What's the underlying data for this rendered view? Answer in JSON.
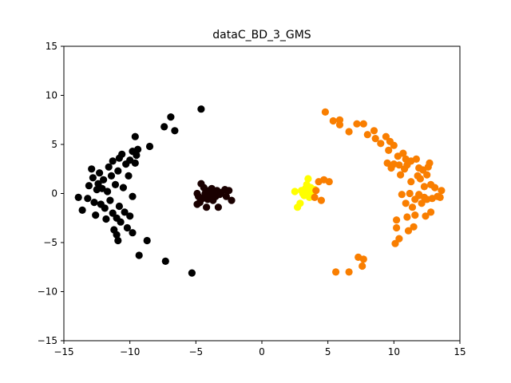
{
  "chart_data": {
    "type": "scatter",
    "title": "dataC_BD_3_GMS",
    "xlabel": "",
    "ylabel": "",
    "xlim": [
      -15,
      15
    ],
    "ylim": [
      -15,
      15
    ],
    "x_ticks": [
      -15,
      -10,
      -5,
      0,
      5,
      10,
      15
    ],
    "y_ticks": [
      -15,
      -10,
      -5,
      0,
      5,
      10,
      15
    ],
    "x_tick_labels": [
      "−15",
      "−10",
      "−5",
      "0",
      "5",
      "10",
      "15"
    ],
    "y_tick_labels": [
      "−15",
      "−10",
      "−5",
      "0",
      "5",
      "10",
      "15"
    ],
    "grid": false,
    "legend": "none",
    "series": [
      {
        "color": "#000000",
        "points": [
          [
            -13.9,
            -0.4
          ],
          [
            -13.6,
            -1.7
          ],
          [
            -13.2,
            -0.5
          ],
          [
            -13.1,
            0.8
          ],
          [
            -12.9,
            2.5
          ],
          [
            -12.8,
            1.6
          ],
          [
            -12.7,
            -0.9
          ],
          [
            -12.6,
            -2.2
          ],
          [
            -12.5,
            0.4
          ],
          [
            -12.4,
            1.0
          ],
          [
            -12.3,
            2.1
          ],
          [
            -12.2,
            -1.1
          ],
          [
            -12.1,
            0.5
          ],
          [
            -12.0,
            1.4
          ],
          [
            -11.9,
            -1.5
          ],
          [
            -11.8,
            -2.6
          ],
          [
            -11.7,
            0.2
          ],
          [
            -11.6,
            2.7
          ],
          [
            -11.5,
            -0.7
          ],
          [
            -11.4,
            1.8
          ],
          [
            -11.3,
            3.3
          ],
          [
            -11.3,
            -2.0
          ],
          [
            -11.2,
            -3.7
          ],
          [
            -11.1,
            0.9
          ],
          [
            -11.0,
            -2.5
          ],
          [
            -10.9,
            2.3
          ],
          [
            -10.8,
            3.6
          ],
          [
            -10.8,
            -1.3
          ],
          [
            -11.0,
            -4.2
          ],
          [
            -10.9,
            -4.8
          ],
          [
            -10.7,
            -2.9
          ],
          [
            -10.6,
            4.0
          ],
          [
            -10.5,
            0.6
          ],
          [
            -10.4,
            -1.9
          ],
          [
            -10.3,
            3.0
          ],
          [
            -10.2,
            -3.5
          ],
          [
            -10.1,
            1.8
          ],
          [
            -10.0,
            -2.3
          ],
          [
            -10.0,
            3.4
          ],
          [
            -9.8,
            -4.0
          ],
          [
            -9.8,
            -0.3
          ],
          [
            -9.8,
            4.3
          ],
          [
            -9.6,
            3.1
          ],
          [
            -9.5,
            3.9
          ],
          [
            -9.4,
            4.5
          ],
          [
            -9.6,
            5.8
          ],
          [
            -9.3,
            -6.3
          ],
          [
            -8.7,
            -4.8
          ],
          [
            -8.5,
            4.8
          ],
          [
            -7.4,
            6.8
          ],
          [
            -7.3,
            -6.9
          ],
          [
            -6.9,
            7.8
          ],
          [
            -6.6,
            6.4
          ],
          [
            -5.3,
            -8.1
          ],
          [
            -4.6,
            8.6
          ]
        ]
      },
      {
        "color": "#1a0000",
        "points": [
          [
            -4.9,
            -1.1
          ],
          [
            -4.9,
            0.0
          ],
          [
            -4.8,
            -0.3
          ],
          [
            -4.7,
            -0.9
          ],
          [
            -4.6,
            1.0
          ],
          [
            -4.5,
            -0.5
          ],
          [
            -4.4,
            0.6
          ],
          [
            -4.3,
            0.0
          ],
          [
            -4.2,
            -1.4
          ],
          [
            -4.1,
            -0.6
          ],
          [
            -4.0,
            0.3
          ],
          [
            -3.9,
            -0.2
          ],
          [
            -3.8,
            0.5
          ],
          [
            -3.7,
            -0.7
          ],
          [
            -3.6,
            0.2
          ],
          [
            -3.5,
            -0.3
          ],
          [
            -3.4,
            0.3
          ],
          [
            -3.3,
            -1.4
          ],
          [
            -3.2,
            -0.1
          ],
          [
            -3.1,
            0.1
          ],
          [
            -2.8,
            0.4
          ],
          [
            -2.7,
            -0.3
          ],
          [
            -2.5,
            0.3
          ],
          [
            -2.3,
            -0.7
          ]
        ]
      },
      {
        "color": "#ffff00",
        "points": [
          [
            2.5,
            0.2
          ],
          [
            2.7,
            -1.4
          ],
          [
            2.9,
            -1.0
          ],
          [
            3.0,
            0.3
          ],
          [
            3.1,
            0.0
          ],
          [
            3.2,
            -0.2
          ],
          [
            3.3,
            0.5
          ],
          [
            3.4,
            0.9
          ],
          [
            3.5,
            0.2
          ],
          [
            3.5,
            1.5
          ],
          [
            3.6,
            -0.4
          ],
          [
            3.7,
            0.6
          ],
          [
            3.8,
            0.1
          ],
          [
            3.9,
            -0.3
          ],
          [
            4.0,
            0.4
          ]
        ]
      },
      {
        "color": "#f97e00",
        "points": [
          [
            4.0,
            -0.4
          ],
          [
            4.1,
            0.3
          ],
          [
            4.3,
            1.2
          ],
          [
            4.5,
            -0.7
          ],
          [
            4.7,
            1.4
          ],
          [
            5.1,
            1.2
          ],
          [
            4.8,
            8.3
          ],
          [
            5.4,
            7.4
          ],
          [
            5.9,
            7.5
          ],
          [
            5.9,
            7.0
          ],
          [
            5.6,
            -8.0
          ],
          [
            6.6,
            -8.0
          ],
          [
            6.6,
            6.3
          ],
          [
            7.2,
            7.1
          ],
          [
            7.3,
            -6.5
          ],
          [
            7.7,
            -6.7
          ],
          [
            7.6,
            -7.4
          ],
          [
            7.7,
            7.1
          ],
          [
            8.0,
            6.0
          ],
          [
            8.5,
            6.4
          ],
          [
            8.6,
            5.6
          ],
          [
            9.0,
            5.1
          ],
          [
            9.4,
            5.8
          ],
          [
            9.5,
            3.1
          ],
          [
            9.6,
            4.4
          ],
          [
            9.7,
            5.3
          ],
          [
            9.8,
            2.6
          ],
          [
            10.0,
            4.9
          ],
          [
            10.0,
            3.0
          ],
          [
            10.1,
            -5.1
          ],
          [
            10.2,
            -3.5
          ],
          [
            10.2,
            -2.7
          ],
          [
            10.3,
            3.8
          ],
          [
            10.4,
            2.9
          ],
          [
            10.4,
            -4.6
          ],
          [
            10.5,
            1.9
          ],
          [
            10.6,
            -0.1
          ],
          [
            10.7,
            4.1
          ],
          [
            10.8,
            2.5
          ],
          [
            10.9,
            3.5
          ],
          [
            10.9,
            -1.0
          ],
          [
            11.0,
            2.9
          ],
          [
            11.0,
            -2.4
          ],
          [
            11.1,
            -3.8
          ],
          [
            11.2,
            0.0
          ],
          [
            11.3,
            3.3
          ],
          [
            11.3,
            1.2
          ],
          [
            11.4,
            -1.4
          ],
          [
            11.5,
            -3.4
          ],
          [
            11.6,
            -0.6
          ],
          [
            11.6,
            -2.2
          ],
          [
            11.7,
            3.5
          ],
          [
            11.8,
            1.8
          ],
          [
            11.9,
            2.6
          ],
          [
            11.9,
            -0.1
          ],
          [
            12.0,
            1.5
          ],
          [
            12.1,
            -1.0
          ],
          [
            12.2,
            2.4
          ],
          [
            12.3,
            0.7
          ],
          [
            12.3,
            -0.4
          ],
          [
            12.4,
            -2.3
          ],
          [
            12.5,
            1.9
          ],
          [
            12.5,
            -0.6
          ],
          [
            12.6,
            2.7
          ],
          [
            12.7,
            3.1
          ],
          [
            12.8,
            0.9
          ],
          [
            12.9,
            -0.5
          ],
          [
            13.1,
            0.6
          ],
          [
            13.3,
            -0.3
          ],
          [
            13.5,
            -0.4
          ],
          [
            13.6,
            0.3
          ],
          [
            12.8,
            -1.9
          ],
          [
            11.9,
            -0.2
          ]
        ]
      }
    ]
  }
}
